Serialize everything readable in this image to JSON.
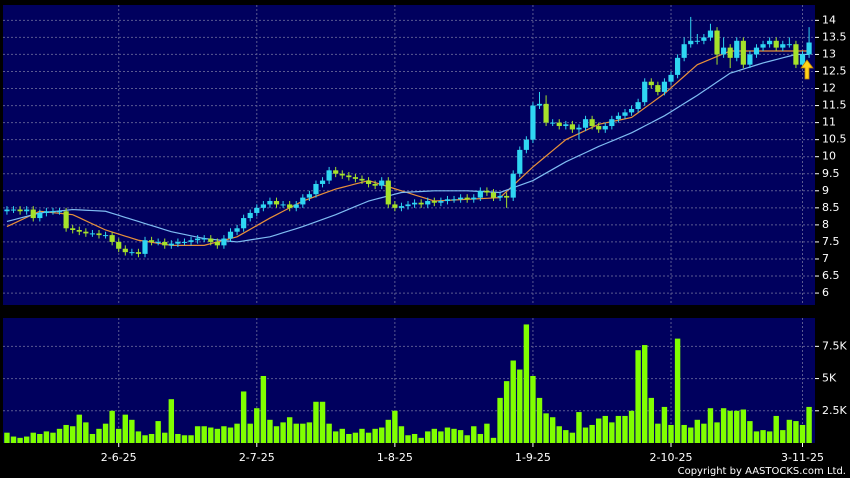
{
  "chart_data": [
    {
      "type": "candlestick",
      "categories": [
        null,
        null,
        null,
        null,
        null,
        null,
        null,
        null,
        null,
        null,
        null,
        null,
        null,
        null,
        null,
        null,
        null,
        "2-6-25",
        null,
        null,
        null,
        null,
        null,
        null,
        null,
        null,
        null,
        null,
        null,
        null,
        null,
        null,
        null,
        null,
        null,
        null,
        null,
        null,
        "2-7-25",
        null,
        null,
        null,
        null,
        null,
        null,
        null,
        null,
        null,
        null,
        null,
        null,
        null,
        null,
        null,
        null,
        null,
        null,
        null,
        null,
        "1-8-25",
        null,
        null,
        null,
        null,
        null,
        null,
        null,
        null,
        null,
        null,
        null,
        null,
        null,
        null,
        null,
        null,
        null,
        null,
        null,
        null,
        "1-9-25",
        null,
        null,
        null,
        null,
        null,
        null,
        null,
        null,
        null,
        null,
        null,
        null,
        null,
        null,
        null,
        null,
        null,
        null,
        null,
        null,
        "2-10-25",
        null,
        null,
        null,
        null,
        null,
        null,
        null,
        null,
        null,
        null,
        null,
        null,
        null,
        null,
        null,
        null,
        null,
        null,
        null,
        "3-11-25",
        null
      ],
      "open": [
        8.4,
        8.45,
        8.45,
        8.4,
        8.45,
        8.2,
        8.35,
        8.4,
        8.4,
        8.4,
        7.9,
        7.85,
        7.8,
        7.75,
        7.75,
        7.7,
        7.7,
        7.5,
        7.3,
        7.2,
        7.2,
        7.15,
        7.55,
        7.5,
        7.5,
        7.4,
        7.45,
        7.5,
        7.5,
        7.55,
        7.6,
        7.6,
        7.5,
        7.4,
        7.6,
        7.8,
        7.9,
        8.2,
        8.35,
        8.5,
        8.6,
        8.7,
        8.6,
        8.6,
        8.5,
        8.6,
        8.8,
        8.9,
        9.2,
        9.3,
        9.6,
        9.5,
        9.45,
        9.4,
        9.35,
        9.3,
        9.2,
        9.15,
        9.3,
        8.6,
        8.5,
        8.55,
        8.6,
        8.65,
        8.6,
        8.7,
        8.65,
        8.7,
        8.75,
        8.75,
        8.8,
        8.75,
        8.8,
        9.0,
        8.95,
        8.8,
        8.85,
        8.8,
        9.5,
        10.2,
        10.5,
        11.5,
        11.55,
        11.0,
        11.0,
        10.9,
        10.95,
        10.8,
        10.85,
        11.1,
        10.9,
        10.8,
        10.9,
        11.1,
        11.2,
        11.3,
        11.4,
        11.6,
        12.2,
        12.1,
        11.9,
        12.2,
        12.4,
        12.9,
        13.3,
        13.4,
        13.4,
        13.5,
        13.7,
        13.0,
        13.2,
        12.9,
        13.4,
        12.7,
        13.0,
        13.2,
        13.3,
        13.4,
        13.2,
        13.3,
        13.3,
        12.7,
        13.0
      ],
      "high": [
        8.55,
        8.55,
        8.55,
        8.55,
        8.55,
        8.45,
        8.5,
        8.5,
        8.5,
        8.5,
        8.0,
        7.95,
        7.9,
        7.85,
        7.85,
        7.8,
        7.8,
        7.6,
        7.4,
        7.3,
        7.3,
        7.65,
        7.65,
        7.6,
        7.6,
        7.55,
        7.6,
        7.6,
        7.65,
        7.7,
        7.7,
        7.7,
        7.6,
        7.7,
        7.9,
        8.0,
        8.3,
        8.45,
        8.6,
        8.7,
        8.8,
        8.8,
        8.7,
        8.7,
        8.7,
        8.9,
        9.0,
        9.3,
        9.4,
        9.7,
        9.7,
        9.6,
        9.55,
        9.5,
        9.45,
        9.4,
        9.3,
        9.4,
        9.4,
        8.7,
        8.65,
        8.7,
        8.75,
        8.75,
        8.8,
        8.8,
        8.8,
        8.85,
        8.85,
        8.9,
        8.9,
        8.9,
        9.1,
        9.1,
        9.05,
        8.95,
        8.95,
        9.6,
        10.3,
        10.6,
        11.6,
        11.9,
        11.8,
        11.1,
        11.1,
        11.05,
        11.05,
        10.95,
        11.2,
        11.2,
        11.0,
        11.0,
        11.2,
        11.3,
        11.4,
        11.5,
        11.7,
        12.3,
        12.3,
        12.2,
        12.3,
        12.5,
        13.0,
        13.5,
        14.1,
        13.6,
        13.6,
        13.9,
        13.8,
        13.5,
        13.3,
        13.5,
        13.5,
        13.1,
        13.3,
        13.4,
        13.5,
        13.5,
        13.4,
        13.5,
        13.4,
        13.1,
        13.8
      ],
      "low": [
        8.3,
        8.35,
        8.3,
        8.3,
        8.1,
        8.1,
        8.25,
        8.3,
        8.3,
        7.8,
        7.75,
        7.7,
        7.65,
        7.65,
        7.6,
        7.6,
        7.4,
        7.2,
        7.1,
        7.1,
        7.05,
        7.05,
        7.4,
        7.4,
        7.3,
        7.3,
        7.35,
        7.4,
        7.4,
        7.45,
        7.5,
        7.4,
        7.3,
        7.3,
        7.5,
        7.7,
        7.8,
        8.1,
        8.25,
        8.4,
        8.5,
        8.5,
        8.5,
        8.4,
        8.4,
        8.5,
        8.7,
        8.8,
        9.1,
        9.2,
        9.4,
        9.35,
        9.3,
        9.25,
        9.2,
        9.1,
        9.05,
        9.05,
        8.5,
        8.4,
        8.4,
        8.45,
        8.5,
        8.5,
        8.5,
        8.55,
        8.55,
        8.6,
        8.65,
        8.65,
        8.65,
        8.65,
        8.7,
        8.85,
        8.7,
        8.7,
        8.5,
        8.7,
        9.4,
        10.1,
        10.4,
        11.4,
        10.9,
        10.9,
        10.8,
        10.8,
        10.7,
        10.5,
        10.75,
        10.8,
        10.7,
        10.7,
        10.8,
        11.0,
        11.1,
        11.2,
        11.3,
        11.5,
        12.0,
        11.8,
        11.8,
        12.1,
        12.3,
        12.8,
        13.2,
        13.3,
        13.3,
        13.4,
        12.7,
        12.9,
        12.6,
        12.8,
        12.6,
        12.6,
        12.9,
        13.1,
        13.2,
        13.1,
        13.1,
        13.2,
        12.6,
        12.6,
        12.9
      ],
      "close": [
        8.45,
        8.45,
        8.4,
        8.45,
        8.2,
        8.35,
        8.4,
        8.4,
        8.4,
        7.9,
        7.85,
        7.8,
        7.75,
        7.75,
        7.7,
        7.7,
        7.5,
        7.3,
        7.2,
        7.2,
        7.15,
        7.55,
        7.5,
        7.5,
        7.4,
        7.45,
        7.5,
        7.5,
        7.55,
        7.6,
        7.6,
        7.5,
        7.4,
        7.6,
        7.8,
        7.9,
        8.2,
        8.35,
        8.5,
        8.6,
        8.7,
        8.6,
        8.6,
        8.5,
        8.6,
        8.8,
        8.9,
        9.2,
        9.3,
        9.6,
        9.5,
        9.45,
        9.4,
        9.35,
        9.3,
        9.2,
        9.15,
        9.3,
        8.6,
        8.5,
        8.55,
        8.6,
        8.65,
        8.6,
        8.7,
        8.65,
        8.7,
        8.75,
        8.75,
        8.8,
        8.75,
        8.8,
        9.0,
        8.95,
        8.8,
        8.85,
        8.8,
        9.5,
        10.2,
        10.5,
        11.5,
        11.55,
        11.0,
        11.0,
        10.9,
        10.95,
        10.8,
        10.85,
        11.1,
        10.9,
        10.8,
        10.9,
        11.1,
        11.2,
        11.3,
        11.4,
        11.6,
        12.2,
        12.1,
        11.9,
        12.2,
        12.4,
        12.9,
        13.3,
        13.4,
        13.4,
        13.5,
        13.7,
        13.0,
        13.2,
        12.9,
        13.4,
        12.7,
        13.0,
        13.2,
        13.3,
        13.4,
        13.2,
        13.3,
        13.3,
        12.7,
        13.0,
        13.35
      ],
      "up_color": "#2fd6f2",
      "down_color": "#a6e22a",
      "series": [
        {
          "color": "#e8903a",
          "values": [
            7.95,
            8.04,
            8.13,
            8.22,
            8.31,
            8.4,
            8.38,
            8.36,
            8.34,
            8.32,
            8.3,
            8.21,
            8.12,
            8.03,
            7.94,
            7.85,
            7.79,
            7.73,
            7.67,
            7.61,
            7.55,
            7.52,
            7.49,
            7.46,
            7.43,
            7.4,
            7.4,
            7.4,
            7.4,
            7.4,
            7.4,
            7.45,
            7.5,
            7.55,
            7.6,
            7.65,
            7.76,
            7.87,
            7.98,
            8.09,
            8.2,
            8.3,
            8.4,
            8.5,
            8.6,
            8.7,
            8.77,
            8.84,
            8.91,
            8.98,
            9.05,
            9.1,
            9.15,
            9.2,
            9.25,
            9.3,
            9.24,
            9.18,
            9.12,
            9.06,
            9.0,
            8.94,
            8.88,
            8.82,
            8.76,
            8.7,
            8.71,
            8.72,
            8.73,
            8.74,
            8.75,
            8.76,
            8.77,
            8.78,
            8.79,
            8.8,
            8.98,
            9.16,
            9.34,
            9.52,
            9.7,
            9.86,
            10.02,
            10.18,
            10.34,
            10.5,
            10.59,
            10.68,
            10.77,
            10.86,
            10.95,
            10.99,
            11.03,
            11.07,
            11.11,
            11.15,
            11.29,
            11.43,
            11.57,
            11.71,
            11.85,
            12.02,
            12.19,
            12.36,
            12.53,
            12.7,
            12.78,
            12.86,
            12.94,
            13.02,
            13.1,
            13.1,
            13.1,
            13.1,
            13.1,
            13.1,
            13.1,
            13.1,
            13.1,
            13.1,
            13.1,
            13.1,
            13.1
          ]
        },
        {
          "color": "#7fbcf2",
          "values": [
            8.1,
            8.15,
            8.2,
            8.25,
            8.3,
            8.35,
            8.37,
            8.39,
            8.41,
            8.43,
            8.45,
            8.44,
            8.43,
            8.42,
            8.41,
            8.4,
            8.34,
            8.28,
            8.22,
            8.16,
            8.1,
            8.04,
            7.98,
            7.92,
            7.86,
            7.8,
            7.76,
            7.72,
            7.68,
            7.64,
            7.6,
            7.58,
            7.56,
            7.54,
            7.52,
            7.5,
            7.53,
            7.56,
            7.59,
            7.62,
            7.65,
            7.71,
            7.77,
            7.83,
            7.89,
            7.95,
            8.02,
            8.09,
            8.16,
            8.23,
            8.3,
            8.38,
            8.46,
            8.54,
            8.62,
            8.7,
            8.75,
            8.8,
            8.85,
            8.9,
            8.95,
            8.96,
            8.97,
            8.98,
            8.99,
            9.0,
            9.0,
            9.0,
            9.0,
            9.0,
            9.0,
            8.99,
            8.98,
            8.97,
            8.96,
            8.95,
            9.02,
            9.09,
            9.16,
            9.23,
            9.3,
            9.41,
            9.52,
            9.63,
            9.74,
            9.85,
            9.94,
            10.03,
            10.12,
            10.21,
            10.3,
            10.38,
            10.46,
            10.54,
            10.62,
            10.7,
            10.8,
            10.9,
            11.0,
            11.1,
            11.2,
            11.32,
            11.44,
            11.56,
            11.68,
            11.8,
            11.93,
            12.06,
            12.19,
            12.32,
            12.45,
            12.51,
            12.57,
            12.63,
            12.69,
            12.75,
            12.8,
            12.85,
            12.9,
            12.95,
            13.0,
            13.0,
            13.0
          ]
        }
      ],
      "ylim": [
        5.65,
        14.45
      ],
      "yticks": [
        6,
        6.5,
        7,
        7.5,
        8,
        8.5,
        9,
        9.5,
        10,
        10.5,
        11,
        11.5,
        12,
        12.5,
        13,
        13.5,
        14
      ],
      "grid": true
    },
    {
      "type": "bar",
      "color": "#80ff00",
      "values": [
        800,
        500,
        400,
        500,
        800,
        700,
        900,
        800,
        1100,
        1400,
        1300,
        2200,
        1600,
        700,
        1100,
        1500,
        2500,
        1100,
        2200,
        1800,
        900,
        600,
        700,
        1700,
        800,
        3400,
        700,
        600,
        600,
        1300,
        1300,
        1200,
        1100,
        1300,
        1200,
        1500,
        4000,
        1500,
        2700,
        5200,
        1800,
        1300,
        1600,
        2000,
        1500,
        1500,
        1600,
        3200,
        3200,
        1500,
        900,
        1100,
        700,
        800,
        1100,
        800,
        1100,
        1200,
        1800,
        2500,
        1300,
        600,
        700,
        400,
        900,
        1100,
        900,
        1200,
        1100,
        1000,
        600,
        1300,
        700,
        1500,
        400,
        3500,
        4800,
        6400,
        5700,
        9200,
        5200,
        3500,
        2300,
        2000,
        1300,
        1000,
        800,
        2400,
        1200,
        1400,
        1900,
        2100,
        1600,
        2100,
        2100,
        2500,
        7200,
        7600,
        3500,
        1500,
        2800,
        1400,
        8100,
        1400,
        1200,
        1800,
        1500,
        2700,
        1600,
        2700,
        2500,
        2500,
        2600,
        1700,
        900,
        1000,
        900,
        2100,
        1000,
        1800,
        1700,
        1400,
        2800
      ],
      "ylim": [
        0,
        9700
      ],
      "yticks": [
        {
          "value": 2500,
          "label": "2.5K"
        },
        {
          "value": 5000,
          "label": "5K"
        },
        {
          "value": 7500,
          "label": "7.5K"
        }
      ],
      "grid": true
    }
  ],
  "footer": "Copyright by AASTOCKS.com Ltd."
}
